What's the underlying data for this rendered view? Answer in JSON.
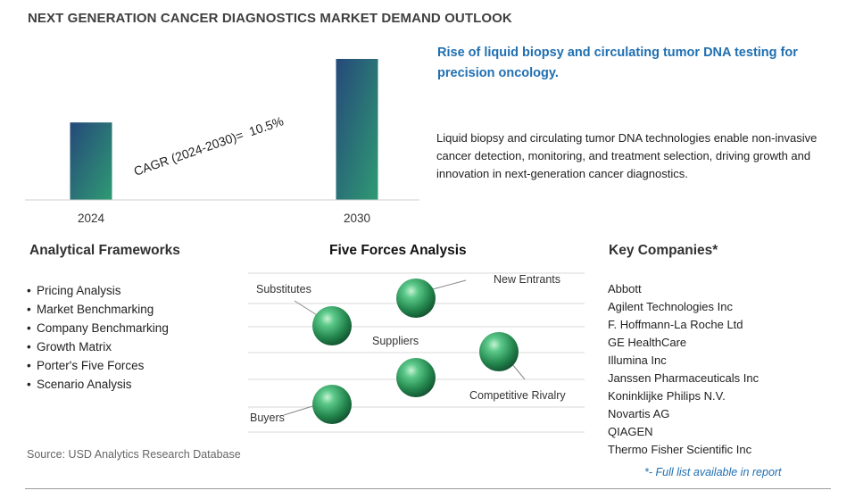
{
  "page_title": "NEXT GENERATION CANCER DIAGNOSTICS MARKET DEMAND OUTLOOK",
  "chart_data": {
    "type": "bar",
    "categories": [
      "2024",
      "2030"
    ],
    "values": [
      1.0,
      1.82
    ],
    "annotation": "CAGR (2024-2030)=  10.5%",
    "bar_colors": [
      "#2e8b6e",
      "#24456f"
    ]
  },
  "headline": "Rise of liquid biopsy and circulating tumor DNA testing for precision oncology.",
  "description": "Liquid biopsy and circulating tumor DNA technologies enable non-invasive cancer detection, monitoring, and treatment selection, driving growth and innovation in next-generation cancer diagnostics.",
  "frameworks": {
    "title": "Analytical Frameworks",
    "items": [
      "Pricing Analysis",
      "Market Benchmarking",
      "Company Benchmarking",
      "Growth Matrix",
      "Porter's Five Forces",
      "Scenario Analysis"
    ]
  },
  "five_forces": {
    "title": "Five Forces Analysis",
    "forces": [
      "Substitutes",
      "New Entrants",
      "Suppliers",
      "Competitive Rivalry",
      "Buyers"
    ]
  },
  "companies": {
    "title": "Key Companies*",
    "items": [
      "Abbott",
      "Agilent Technologies Inc",
      "F. Hoffmann-La Roche Ltd",
      "GE HealthCare",
      "Illumina Inc",
      "Janssen Pharmaceuticals Inc",
      "Koninklijke Philips N.V.",
      "Novartis AG",
      "QIAGEN",
      "Thermo Fisher Scientific Inc"
    ],
    "footnote": "*- Full list available in report"
  },
  "source": "Source: USD Analytics Research Database",
  "colors": {
    "accent_blue": "#1f6fb2",
    "sphere_green": "#2e9e5e"
  }
}
